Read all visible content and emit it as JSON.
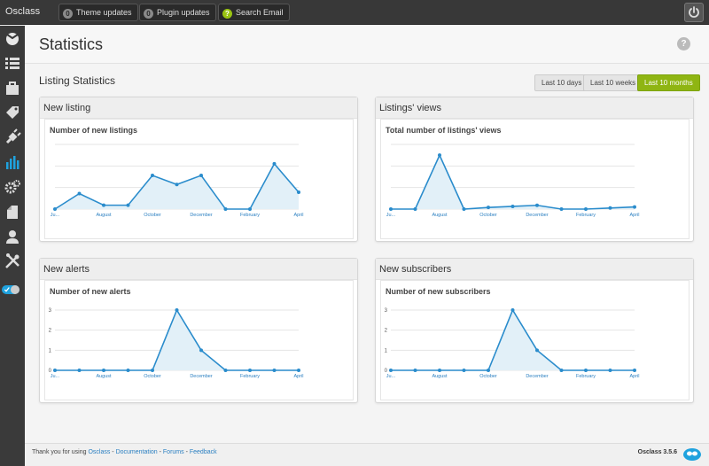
{
  "app": {
    "brand": "Osclass"
  },
  "topbar": {
    "theme_updates": {
      "count": "0",
      "label": "Theme updates"
    },
    "plugin_updates": {
      "count": "0",
      "label": "Plugin updates"
    },
    "search_email": {
      "icon": "?",
      "label": "Search Email"
    }
  },
  "sidebar": {
    "items": [
      "osclass-logo-icon",
      "list-icon",
      "bag-icon",
      "tag-icon",
      "plug-icon",
      "bar-chart-icon",
      "gears-icon",
      "document-icon",
      "user-icon",
      "tools-icon",
      "toggle-icon"
    ]
  },
  "header": {
    "title": "Statistics",
    "help": "?"
  },
  "content": {
    "subtitle": "Listing Statistics",
    "ranges": [
      "Last 10 days",
      "Last 10 weeks",
      "Last 10 months"
    ],
    "active_range": "Last 10 months"
  },
  "colors": {
    "line": "#2a8ccc",
    "fill": "#e2f0f8",
    "accent": "#8fb513"
  },
  "chart_data": [
    {
      "panel": "New listing",
      "title": "Number of new listings",
      "type": "area",
      "x_ticks": [
        "Ju...",
        "August",
        "October",
        "December",
        "February",
        "April"
      ],
      "x": [
        0,
        1,
        2,
        3,
        4,
        5,
        6,
        7,
        8,
        9,
        10
      ],
      "values": [
        0,
        1.2,
        0.3,
        0.3,
        2.6,
        1.9,
        2.6,
        0,
        0,
        3.5,
        1.3
      ],
      "ylim": [
        0,
        5
      ],
      "y_labels": false
    },
    {
      "panel": "Listings' views",
      "title": "Total number of listings' views",
      "type": "area",
      "x_ticks": [
        "Ju...",
        "August",
        "October",
        "December",
        "February",
        "April"
      ],
      "x": [
        0,
        1,
        2,
        3,
        4,
        5,
        6,
        7,
        8,
        9,
        10
      ],
      "values": [
        0,
        0,
        50,
        0,
        1.5,
        2.5,
        3.5,
        0,
        0,
        1,
        2
      ],
      "ylim": [
        0,
        60
      ],
      "y_labels": false
    },
    {
      "panel": "New alerts",
      "title": "Number of new alerts",
      "type": "area",
      "x_ticks": [
        "Ju...",
        "August",
        "October",
        "December",
        "February",
        "April"
      ],
      "x": [
        0,
        1,
        2,
        3,
        4,
        5,
        6,
        7,
        8,
        9,
        10
      ],
      "values": [
        0,
        0,
        0,
        0,
        0,
        3,
        1,
        0,
        0,
        0,
        0
      ],
      "ylim": [
        0,
        3
      ],
      "y_ticks": [
        "0",
        "1",
        "2",
        "3"
      ],
      "y_labels": true
    },
    {
      "panel": "New subscribers",
      "title": "Number of new subscribers",
      "type": "area",
      "x_ticks": [
        "Ju...",
        "August",
        "October",
        "December",
        "February",
        "April"
      ],
      "x": [
        0,
        1,
        2,
        3,
        4,
        5,
        6,
        7,
        8,
        9,
        10
      ],
      "values": [
        0,
        0,
        0,
        0,
        0,
        3,
        1,
        0,
        0,
        0,
        0
      ],
      "ylim": [
        0,
        3
      ],
      "y_ticks": [
        "0",
        "1",
        "2",
        "3"
      ],
      "y_labels": true
    }
  ],
  "footer": {
    "thanks": "Thank you for using",
    "links": [
      "Osclass",
      "Documentation",
      "Forums",
      "Feedback"
    ],
    "sep": " - ",
    "version": "Osclass 3.5.6"
  }
}
